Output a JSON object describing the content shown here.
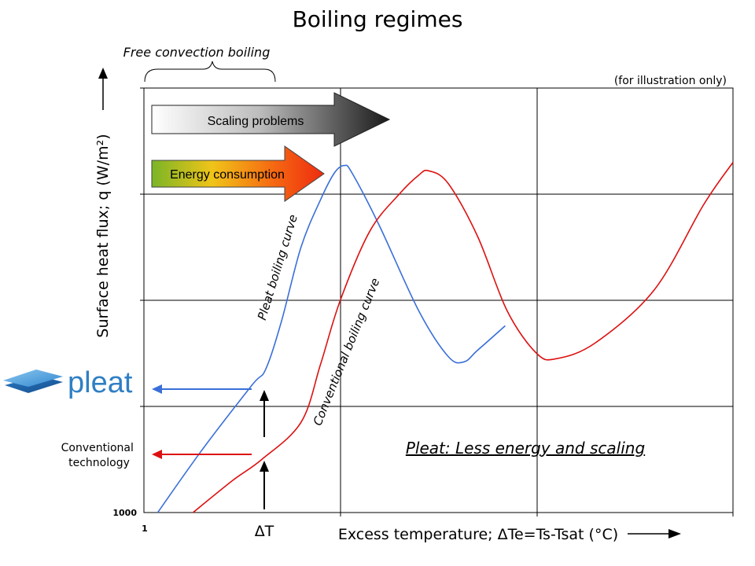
{
  "chart_data": {
    "type": "line",
    "title": "Boiling regimes",
    "note": "(for illustration only)",
    "xlabel": "Excess temperature; ΔTe=Ts-Tsat (°C)",
    "ylabel": "Surface heat flux; q (W/m²)",
    "x_tick_label_first": "1",
    "y_tick_label_first": "1000",
    "xlim": [
      0,
      3
    ],
    "ylim": [
      0,
      4
    ],
    "grid": true,
    "series": [
      {
        "name": "Pleat boiling curve",
        "color": "#3a6fd8",
        "points": [
          [
            0.07,
            0.0
          ],
          [
            0.3,
            0.6
          ],
          [
            0.55,
            1.2
          ],
          [
            0.62,
            1.35
          ],
          [
            0.7,
            1.8
          ],
          [
            0.8,
            2.5
          ],
          [
            0.9,
            2.95
          ],
          [
            0.97,
            3.2
          ],
          [
            1.02,
            3.27
          ],
          [
            1.06,
            3.2
          ],
          [
            1.2,
            2.7
          ],
          [
            1.4,
            1.9
          ],
          [
            1.55,
            1.47
          ],
          [
            1.63,
            1.42
          ],
          [
            1.7,
            1.53
          ],
          [
            1.84,
            1.76
          ]
        ],
        "label_xy": [
          0.7,
          2.3
        ]
      },
      {
        "name": "Conventional boiling curve",
        "color": "#dd1111",
        "points": [
          [
            0.25,
            0.0
          ],
          [
            0.45,
            0.3
          ],
          [
            0.6,
            0.5
          ],
          [
            0.8,
            0.85
          ],
          [
            0.9,
            1.4
          ],
          [
            1.0,
            2.0
          ],
          [
            1.15,
            2.65
          ],
          [
            1.3,
            3.0
          ],
          [
            1.4,
            3.18
          ],
          [
            1.45,
            3.22
          ],
          [
            1.55,
            3.1
          ],
          [
            1.7,
            2.6
          ],
          [
            1.85,
            1.9
          ],
          [
            2.0,
            1.5
          ],
          [
            2.1,
            1.45
          ],
          [
            2.3,
            1.6
          ],
          [
            2.6,
            2.1
          ],
          [
            2.85,
            2.9
          ],
          [
            3.0,
            3.3
          ]
        ],
        "label_xy": [
          1.05,
          1.5
        ]
      }
    ],
    "annotations": {
      "free_convection": "Free convection boiling",
      "scaling": "Scaling problems",
      "energy": "Energy consumption",
      "pleat_logo_text": "pleat",
      "conventional_text_line1": "Conventional",
      "conventional_text_line2": "technology",
      "delta_t": "ΔT",
      "tagline": "Pleat: Less energy and scaling"
    }
  }
}
